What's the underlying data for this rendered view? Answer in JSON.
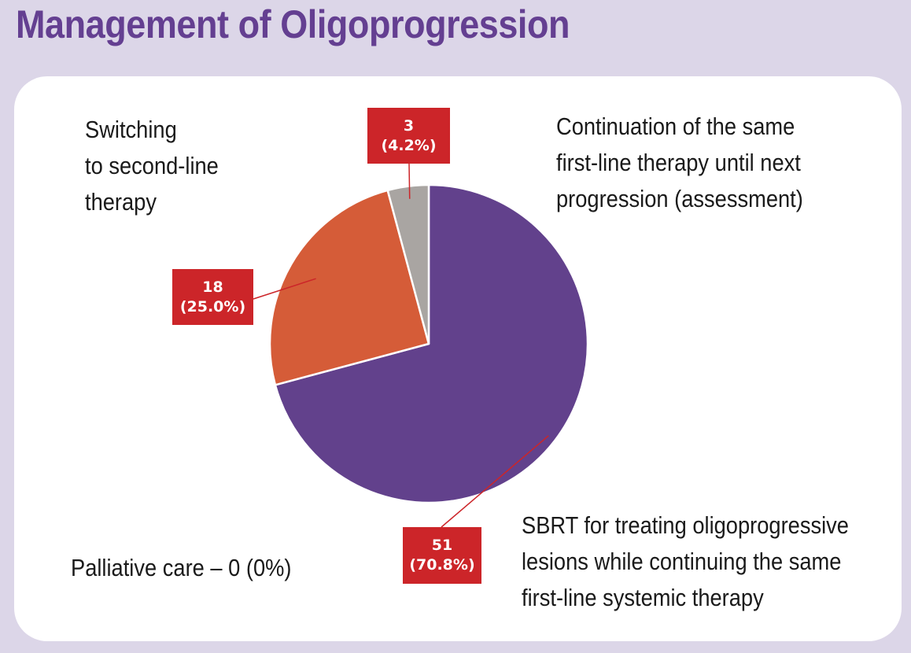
{
  "title": "Management of Oligoprogression",
  "colors": {
    "background": "#dcd6e8",
    "title": "#643f91",
    "label_box": "#cc2529",
    "sbrt": "#62418c",
    "switching": "#d55c38",
    "continuation": "#a9a5a2",
    "palliative": "#999999"
  },
  "chart_data": {
    "type": "pie",
    "title": "Management of Oligoprogression",
    "slices": [
      {
        "label": "SBRT for treating oligoprogressive\nlesions while continuing the same\nfirst-line systemic therapy",
        "value": 51,
        "percent": 70.8,
        "value_text": "51",
        "percent_text": "(70.8%)",
        "color": "#62418c"
      },
      {
        "label": "Switching\nto second-line\ntherapy",
        "value": 18,
        "percent": 25.0,
        "value_text": "18",
        "percent_text": "(25.0%)",
        "color": "#d55c38"
      },
      {
        "label": "Continuation of the same\nfirst-line therapy until next\nprogression (assessment)",
        "value": 3,
        "percent": 4.2,
        "value_text": "3",
        "percent_text": "(4.2%)",
        "color": "#a9a5a2"
      },
      {
        "label": "Palliative care – 0 (0%)",
        "value": 0,
        "percent": 0,
        "color": "#999999"
      }
    ]
  }
}
